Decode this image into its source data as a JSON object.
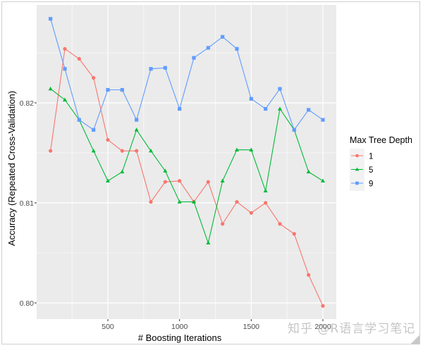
{
  "chart_data": {
    "type": "line",
    "title": "",
    "xlabel": "# Boosting Iterations",
    "ylabel": "Accuracy (Repeated Cross-Validation)",
    "x": [
      100,
      200,
      300,
      400,
      500,
      600,
      700,
      800,
      900,
      1000,
      1100,
      1200,
      1300,
      1400,
      1500,
      1600,
      1700,
      1800,
      1900,
      2000
    ],
    "xlim": [
      10,
      2100
    ],
    "ylim": [
      0.7984,
      0.8297
    ],
    "x_ticks": [
      500,
      1000,
      1500,
      2000
    ],
    "x_tick_labels": [
      "500",
      "1000",
      "1500",
      "2000"
    ],
    "y_ticks": [
      0.8,
      0.81,
      0.82
    ],
    "y_tick_labels": [
      "0.80",
      "0.81",
      "0.82"
    ],
    "grid": true,
    "legend": {
      "title": "Max Tree Depth",
      "position": "right"
    },
    "series": [
      {
        "name": "1",
        "color": "#F8766D",
        "marker": "circle",
        "values": [
          0.8152,
          0.8254,
          0.8244,
          0.8225,
          0.8163,
          0.8152,
          0.8152,
          0.8101,
          0.8121,
          0.8122,
          0.8101,
          0.8121,
          0.8079,
          0.8101,
          0.809,
          0.81,
          0.8079,
          0.8069,
          0.8028,
          0.7997
        ]
      },
      {
        "name": "5",
        "color": "#00BA38",
        "marker": "triangle",
        "values": [
          0.8214,
          0.8203,
          0.8183,
          0.8152,
          0.8122,
          0.8131,
          0.8173,
          0.8152,
          0.8132,
          0.8101,
          0.8101,
          0.806,
          0.8122,
          0.8153,
          0.8153,
          0.8112,
          0.8194,
          0.8173,
          0.8131,
          0.8122
        ]
      },
      {
        "name": "9",
        "color": "#619CFF",
        "marker": "square",
        "values": [
          0.8284,
          0.8234,
          0.8183,
          0.8173,
          0.8213,
          0.8213,
          0.8183,
          0.8234,
          0.8235,
          0.8194,
          0.8245,
          0.8255,
          0.8266,
          0.8254,
          0.8204,
          0.8194,
          0.8214,
          0.8173,
          0.8193,
          0.8183
        ]
      }
    ]
  },
  "watermark": "知乎 @R语言学习笔记",
  "colors": {
    "panel_bg": "#EBEBEB",
    "grid": "#FFFFFF",
    "axis_text": "#4D4D4D",
    "title_text": "#000000"
  }
}
